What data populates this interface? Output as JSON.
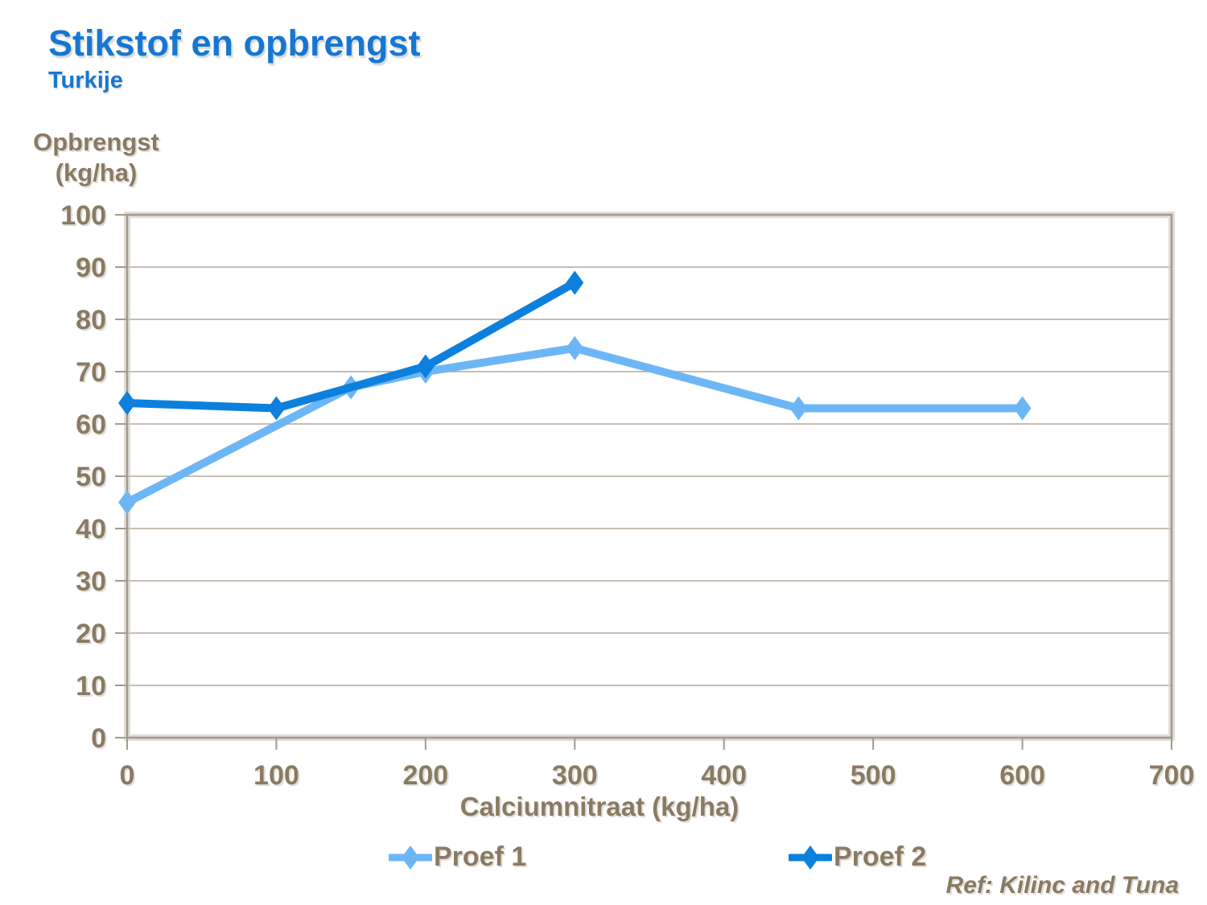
{
  "colors": {
    "title_blue": "#1577D2",
    "axis_text_brown": "#8A7A63",
    "gridline": "#B3A999",
    "plot_border": "#A39A8C",
    "plot_border_highlight": "#D9D3C8",
    "background": "#FFFFFF"
  },
  "chart_data": {
    "type": "line",
    "title": "Stikstof en opbrengst",
    "subtitle": "Turkije",
    "ylabel_line1": "Opbrengst",
    "ylabel_line2": "(kg/ha)",
    "xlabel": "Calciumnitraat (kg/ha)",
    "xlim": [
      0,
      700
    ],
    "ylim": [
      0,
      100
    ],
    "xticks": [
      0,
      100,
      200,
      300,
      400,
      500,
      600,
      700
    ],
    "yticks": [
      0,
      10,
      20,
      30,
      40,
      50,
      60,
      70,
      80,
      90,
      100
    ],
    "grid": "horizontal",
    "legend_position": "bottom",
    "marker": "diamond",
    "series": [
      {
        "name": "Proef 1",
        "color": "#6DB6F6",
        "x": [
          0,
          150,
          200,
          300,
          450,
          600
        ],
        "y": [
          45,
          67,
          70,
          74.5,
          63,
          63
        ]
      },
      {
        "name": "Proef 2",
        "color": "#0D80DD",
        "x": [
          0,
          100,
          200,
          300
        ],
        "y": [
          64,
          63,
          71,
          87
        ]
      }
    ],
    "reference": "Ref: Kilinc and Tuna"
  }
}
